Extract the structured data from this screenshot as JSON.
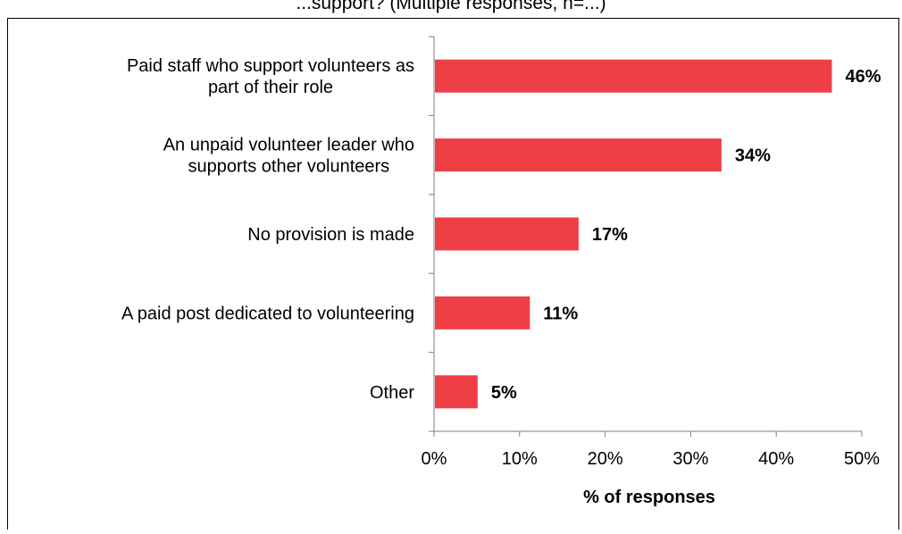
{
  "chart_data": {
    "type": "bar",
    "orientation": "horizontal",
    "title": "...support? (Multiple responses, n=...)",
    "categories": [
      [
        "Paid staff who support volunteers as",
        "part of their role"
      ],
      [
        "An unpaid volunteer leader who",
        "supports other volunteers"
      ],
      [
        "No provision is made"
      ],
      [
        "A paid post dedicated to volunteering"
      ],
      [
        "Other"
      ]
    ],
    "values": [
      46.5,
      33.6,
      16.9,
      11.2,
      5.1
    ],
    "value_labels": [
      "46%",
      "34%",
      "17%",
      "11%",
      "5%"
    ],
    "xlabel": "% of responses",
    "ylabel": "",
    "xlim": [
      0,
      50
    ],
    "x_ticks": [
      0,
      10,
      20,
      30,
      40,
      50
    ],
    "x_tick_labels": [
      "0%",
      "10%",
      "20%",
      "30%",
      "40%",
      "50%"
    ],
    "grid": false,
    "legend": "none",
    "bar_color": "#ee3f46",
    "axis_color": "#7f7f7f",
    "text_color": "#000000"
  }
}
